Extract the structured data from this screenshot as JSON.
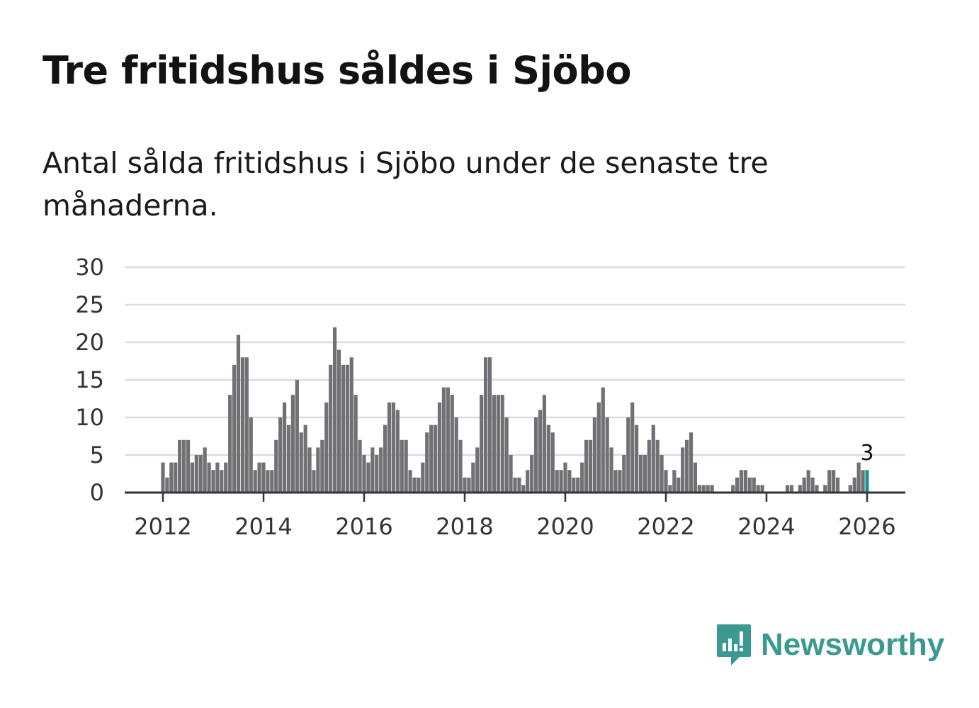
{
  "header": {
    "title": "Tre fritidshus såldes i Sjöbo",
    "subtitle": "Antal sålda fritidshus i Sjöbo under de senaste tre månaderna."
  },
  "brand": {
    "name": "Newsworthy",
    "icon": "newsworthy-logo-icon",
    "color": "#3a9a92"
  },
  "colors": {
    "bar": "#717074",
    "highlight": "#159a91",
    "grid": "#dcdcdc",
    "axis": "#333333"
  },
  "chart_data": {
    "type": "bar",
    "title": "Tre fritidshus såldes i Sjöbo",
    "xlabel": "",
    "ylabel": "",
    "ylim": [
      0,
      30
    ],
    "yticks": [
      "0",
      "5",
      "10",
      "15",
      "20",
      "25",
      "30"
    ],
    "xticks": [
      "2012",
      "2014",
      "2016",
      "2018",
      "2020",
      "2022",
      "2024",
      "2026"
    ],
    "grid": true,
    "start": "2012-01",
    "highlight_last": true,
    "last_value_label": "3",
    "values": [
      4,
      2,
      4,
      4,
      7,
      7,
      7,
      4,
      5,
      5,
      6,
      4,
      3,
      4,
      3,
      4,
      13,
      17,
      21,
      18,
      18,
      10,
      3,
      4,
      4,
      3,
      3,
      7,
      10,
      12,
      9,
      13,
      15,
      8,
      9,
      6,
      3,
      6,
      7,
      12,
      17,
      22,
      19,
      17,
      17,
      18,
      13,
      7,
      5,
      4,
      6,
      5,
      6,
      9,
      12,
      12,
      11,
      7,
      7,
      3,
      2,
      2,
      4,
      8,
      9,
      9,
      12,
      14,
      14,
      13,
      10,
      7,
      2,
      2,
      4,
      6,
      13,
      18,
      18,
      13,
      13,
      13,
      10,
      5,
      2,
      2,
      1,
      3,
      5,
      10,
      11,
      13,
      9,
      8,
      3,
      3,
      4,
      3,
      2,
      2,
      4,
      7,
      7,
      10,
      12,
      14,
      10,
      6,
      3,
      3,
      5,
      10,
      12,
      9,
      5,
      5,
      7,
      9,
      7,
      5,
      3,
      1,
      3,
      2,
      6,
      7,
      8,
      4,
      1,
      1,
      1,
      1,
      0,
      0,
      0,
      0,
      1,
      2,
      3,
      3,
      2,
      2,
      1,
      1,
      0,
      0,
      0,
      0,
      0,
      1,
      1,
      0,
      1,
      2,
      3,
      2,
      1,
      0,
      1,
      3,
      3,
      2,
      0,
      0,
      1,
      2,
      4,
      3,
      3
    ]
  }
}
